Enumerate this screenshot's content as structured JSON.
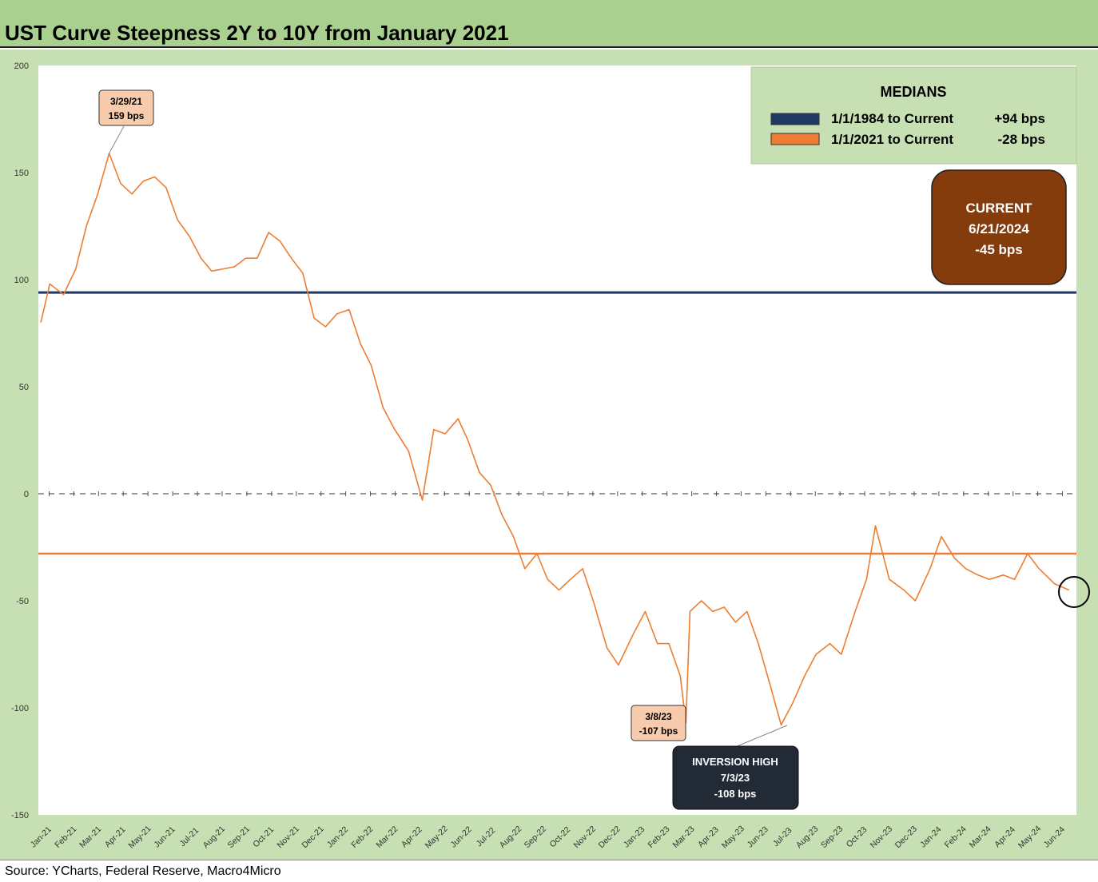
{
  "title": "UST Curve Steepness 2Y to 10Y from January 2021",
  "source": "Source: YCharts, Federal Reserve, Macro4Micro",
  "colors": {
    "series": "#ed7d31",
    "median_long": "#1f3864",
    "median_2021": "#ed7d31",
    "title_bg": "#a9d08e",
    "frame_bg": "#c6e0b4",
    "legend_bg": "#c6e0b4",
    "current_box": "#843c0c",
    "inversion_box": "#222a35",
    "peak_box": "#f8cbad"
  },
  "legend": {
    "title": "MEDIANS",
    "items": [
      {
        "label": "1/1/1984 to Current",
        "value": "+94 bps",
        "color": "#1f3864"
      },
      {
        "label": "1/1/2021 to Current",
        "value": "-28 bps",
        "color": "#ed7d31"
      }
    ]
  },
  "current_box": {
    "line1": "CURRENT",
    "line2": "6/21/2024",
    "line3": "-45 bps"
  },
  "annotations": {
    "peak": {
      "date": "3/29/21",
      "value": "159 bps"
    },
    "march23": {
      "date": "3/8/23",
      "value": "-107 bps"
    },
    "inversion": {
      "line1": "INVERSION HIGH",
      "line2": "7/3/23",
      "line3": "-108 bps"
    }
  },
  "chart_data": {
    "type": "line",
    "title": "UST Curve Steepness 2Y to 10Y from January 2021",
    "xlabel": "",
    "ylabel": "",
    "ylim": [
      -150,
      200
    ],
    "yticks": [
      200,
      150,
      100,
      50,
      0,
      -50,
      -100,
      -150
    ],
    "xticks": [
      "Jan-21",
      "Feb-21",
      "Mar-21",
      "Apr-21",
      "May-21",
      "Jun-21",
      "Jul-21",
      "Aug-21",
      "Sep-21",
      "Oct-21",
      "Nov-21",
      "Dec-21",
      "Jan-22",
      "Feb-22",
      "Mar-22",
      "Apr-22",
      "May-22",
      "Jun-22",
      "Jul-22",
      "Aug-22",
      "Sep-22",
      "Oct-22",
      "Nov-22",
      "Dec-22",
      "Jan-23",
      "Feb-23",
      "Mar-23",
      "Apr-23",
      "May-23",
      "Jun-23",
      "Jul-23",
      "Aug-23",
      "Sep-23",
      "Oct-23",
      "Nov-23",
      "Dec-23",
      "Jan-24",
      "Feb-24",
      "Mar-24",
      "Apr-24",
      "May-24",
      "Jun-24"
    ],
    "grid": false,
    "reference_lines": [
      {
        "name": "1/1/1984 to Current",
        "y": 94
      },
      {
        "name": "1/1/2021 to Current",
        "y": -28
      },
      {
        "name": "zero",
        "y": 0,
        "style": "dashed"
      }
    ],
    "series": [
      {
        "x": [
          "2021-01-04",
          "2021-01-15",
          "2021-02-01",
          "2021-02-16",
          "2021-03-01",
          "2021-03-15",
          "2021-03-29",
          "2021-04-12",
          "2021-04-26",
          "2021-05-10",
          "2021-05-24",
          "2021-06-07",
          "2021-06-21",
          "2021-07-06",
          "2021-07-20",
          "2021-08-02",
          "2021-08-16",
          "2021-08-30",
          "2021-09-13",
          "2021-09-27",
          "2021-10-11",
          "2021-10-25",
          "2021-11-08",
          "2021-11-22",
          "2021-12-06",
          "2021-12-20",
          "2022-01-03",
          "2022-01-18",
          "2022-02-01",
          "2022-02-14",
          "2022-03-01",
          "2022-03-15",
          "2022-04-01",
          "2022-04-18",
          "2022-05-02",
          "2022-05-16",
          "2022-06-01",
          "2022-06-13",
          "2022-06-27",
          "2022-07-11",
          "2022-07-25",
          "2022-08-08",
          "2022-08-22",
          "2022-09-06",
          "2022-09-19",
          "2022-10-03",
          "2022-10-17",
          "2022-11-01",
          "2022-11-14",
          "2022-12-01",
          "2022-12-15",
          "2023-01-03",
          "2023-01-17",
          "2023-02-01",
          "2023-02-15",
          "2023-03-01",
          "2023-03-08",
          "2023-03-13",
          "2023-03-27",
          "2023-04-10",
          "2023-04-24",
          "2023-05-08",
          "2023-05-22",
          "2023-06-05",
          "2023-06-20",
          "2023-07-03",
          "2023-07-17",
          "2023-08-01",
          "2023-08-15",
          "2023-09-01",
          "2023-09-15",
          "2023-10-02",
          "2023-10-16",
          "2023-10-27",
          "2023-11-13",
          "2023-12-01",
          "2023-12-15",
          "2024-01-02",
          "2024-01-16",
          "2024-02-01",
          "2024-02-15",
          "2024-03-01",
          "2024-03-15",
          "2024-04-01",
          "2024-04-15",
          "2024-05-01",
          "2024-05-15",
          "2024-06-03",
          "2024-06-21"
        ],
        "values": [
          80,
          98,
          93,
          105,
          125,
          140,
          159,
          145,
          140,
          146,
          148,
          143,
          128,
          120,
          110,
          104,
          105,
          106,
          110,
          110,
          122,
          118,
          110,
          103,
          82,
          78,
          84,
          86,
          70,
          60,
          40,
          30,
          20,
          -3,
          30,
          28,
          35,
          25,
          10,
          4,
          -10,
          -20,
          -35,
          -28,
          -40,
          -45,
          -40,
          -35,
          -50,
          -72,
          -80,
          -65,
          -55,
          -70,
          -70,
          -85,
          -107,
          -55,
          -50,
          -55,
          -53,
          -60,
          -55,
          -70,
          -90,
          -108,
          -98,
          -85,
          -75,
          -70,
          -75,
          -55,
          -40,
          -15,
          -40,
          -45,
          -50,
          -35,
          -20,
          -30,
          -35,
          -38,
          -40,
          -38,
          -40,
          -28,
          -35,
          -42,
          -45
        ]
      }
    ]
  }
}
